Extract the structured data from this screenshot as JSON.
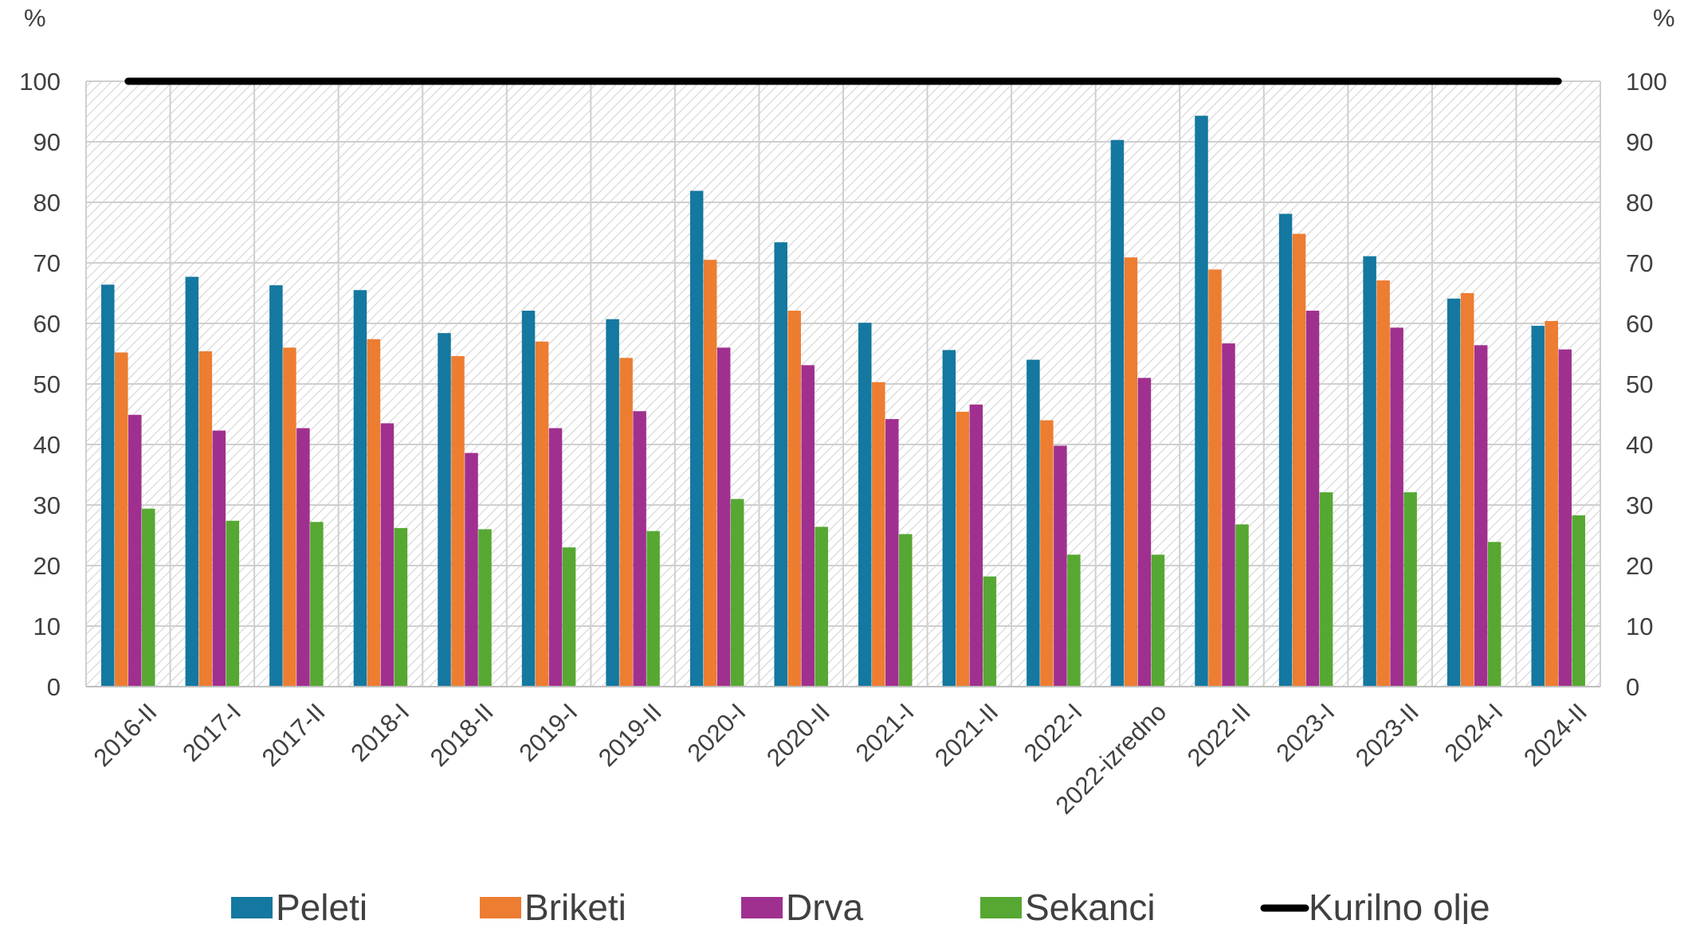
{
  "chart_data": {
    "type": "bar",
    "unit_left": "%",
    "unit_right": "%",
    "ylim": [
      0,
      100
    ],
    "yticks": [
      0,
      10,
      20,
      30,
      40,
      50,
      60,
      70,
      80,
      90,
      100
    ],
    "grid": true,
    "legend_position": "bottom",
    "categories": [
      "2016-II",
      "2017-I",
      "2017-II",
      "2018-I",
      "2018-II",
      "2019-I",
      "2019-II",
      "2020-I",
      "2020-II",
      "2021-I",
      "2021-II",
      "2022-I",
      "2022-izredno",
      "2022-II",
      "2023-I",
      "2023-II",
      "2024-I",
      "2024-II"
    ],
    "series": [
      {
        "name": "Peleti",
        "kind": "bar",
        "color": "#1478a0",
        "values": [
          66.4,
          67.7,
          66.3,
          65.5,
          58.4,
          62.1,
          60.7,
          81.9,
          73.4,
          60.1,
          55.6,
          54.0,
          90.3,
          94.3,
          78.1,
          71.1,
          64.1,
          59.6
        ]
      },
      {
        "name": "Briketi",
        "kind": "bar",
        "color": "#ed7d31",
        "values": [
          55.2,
          55.4,
          56.0,
          57.4,
          54.6,
          57.0,
          54.3,
          70.5,
          62.1,
          50.3,
          45.4,
          44.0,
          70.9,
          68.9,
          74.8,
          67.1,
          65.0,
          60.4
        ]
      },
      {
        "name": "Drva",
        "kind": "bar",
        "color": "#a0308f",
        "values": [
          44.9,
          42.3,
          42.7,
          43.5,
          38.6,
          42.7,
          45.5,
          56.0,
          53.1,
          44.2,
          46.6,
          39.8,
          51.0,
          56.7,
          62.1,
          59.3,
          56.4,
          55.7
        ]
      },
      {
        "name": "Sekanci",
        "kind": "bar",
        "color": "#56a832",
        "values": [
          29.4,
          27.4,
          27.2,
          26.2,
          26.0,
          23.0,
          25.7,
          31.0,
          26.4,
          25.2,
          18.2,
          21.8,
          21.8,
          26.8,
          32.1,
          32.1,
          23.9,
          28.3
        ]
      },
      {
        "name": "Kurilno olje",
        "kind": "line",
        "color": "#000000",
        "values": [
          100,
          100,
          100,
          100,
          100,
          100,
          100,
          100,
          100,
          100,
          100,
          100,
          100,
          100,
          100,
          100,
          100,
          100
        ]
      }
    ]
  }
}
